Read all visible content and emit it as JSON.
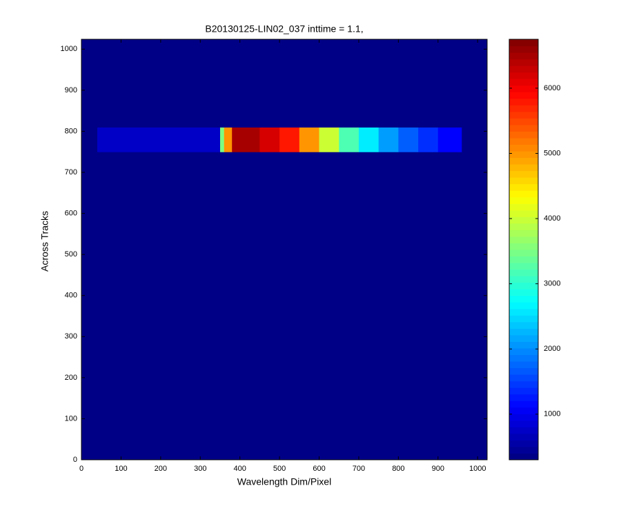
{
  "chart_data": {
    "type": "heatmap",
    "title": "B20130125-LIN02_037 inttime = 1.1,",
    "x_label": "Wavelength Dim/Pixel",
    "y_label": "Across Tracks",
    "xbins": [
      0,
      40,
      350,
      360,
      380,
      450,
      500,
      550,
      600,
      650,
      700,
      750,
      800,
      850,
      900,
      960,
      1024
    ],
    "ybins": [
      0,
      750,
      810,
      1024
    ],
    "z": [
      [
        350,
        350,
        350,
        350,
        350,
        350,
        350,
        350,
        350,
        350,
        350,
        350,
        350,
        350,
        350,
        350
      ],
      [
        350,
        750,
        3500,
        5000,
        6500,
        6200,
        5800,
        5000,
        4000,
        3200,
        2600,
        2100,
        1700,
        1400,
        1100,
        350
      ],
      [
        350,
        350,
        350,
        350,
        350,
        350,
        350,
        350,
        350,
        350,
        350,
        350,
        350,
        350,
        350,
        350
      ]
    ],
    "colormap": "jet",
    "xlim": [
      0,
      1024
    ],
    "ylim": [
      0,
      1024
    ],
    "xticks": [
      0,
      100,
      200,
      300,
      400,
      500,
      600,
      700,
      800,
      900,
      1000
    ],
    "yticks": [
      0,
      100,
      200,
      300,
      400,
      500,
      600,
      700,
      800,
      900,
      1000
    ],
    "clim": [
      300,
      6750
    ],
    "cticks": [
      1000,
      2000,
      3000,
      4000,
      5000,
      6000
    ]
  }
}
